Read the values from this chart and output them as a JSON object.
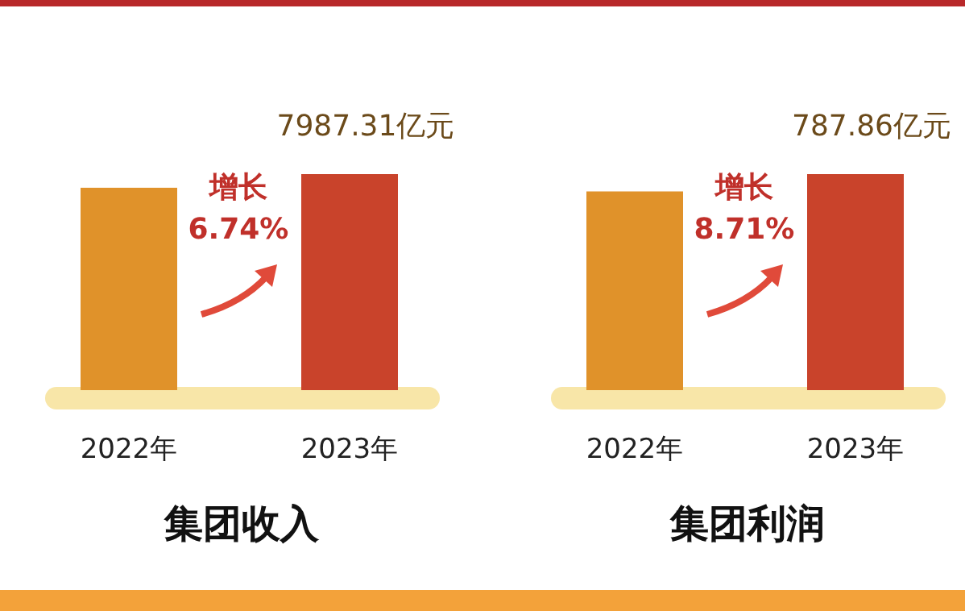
{
  "chart_data": [
    {
      "type": "bar",
      "title": "集团收入",
      "categories": [
        "2022年",
        "2023年"
      ],
      "values": [
        7483,
        7987.31
      ],
      "colors": [
        "#e0922a",
        "#c9432b"
      ],
      "value_labels": [
        null,
        "7987.31亿元"
      ],
      "annotations": [
        "增长",
        "6.74%"
      ]
    },
    {
      "type": "bar",
      "title": "集团利润",
      "categories": [
        "2022年",
        "2023年"
      ],
      "values": [
        724.7,
        787.86
      ],
      "colors": [
        "#e0922a",
        "#c9432b"
      ],
      "value_labels": [
        null,
        "787.86亿元"
      ],
      "annotations": [
        "增长",
        "8.71%"
      ]
    }
  ]
}
